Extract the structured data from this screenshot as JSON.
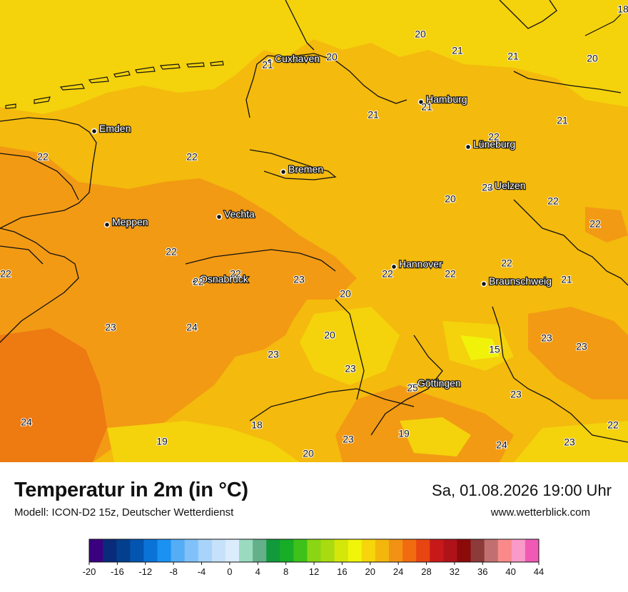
{
  "map": {
    "cities": [
      {
        "name": "Cuxhaven"
      },
      {
        "name": "Hamburg"
      },
      {
        "name": "Emden"
      },
      {
        "name": "Lüneburg"
      },
      {
        "name": "Bremen"
      },
      {
        "name": "Uelzen"
      },
      {
        "name": "Vechta"
      },
      {
        "name": "Meppen"
      },
      {
        "name": "Hannover"
      },
      {
        "name": "Osnabrück"
      },
      {
        "name": "Braunschweig"
      },
      {
        "name": "Göttingen"
      }
    ],
    "values": [
      "18",
      "20",
      "20",
      "21",
      "21",
      "20",
      "21",
      "21",
      "21",
      "21",
      "22",
      "22",
      "22",
      "23",
      "20",
      "22",
      "22",
      "22",
      "22",
      "22",
      "22",
      "22",
      "22",
      "21",
      "22",
      "23",
      "20",
      "23",
      "24",
      "20",
      "23",
      "23",
      "15",
      "23",
      "23",
      "23",
      "25",
      "24",
      "18",
      "19",
      "19",
      "23",
      "24",
      "23",
      "22",
      "20"
    ]
  },
  "footer": {
    "title": "Temperatur in 2m (in °C)",
    "model": "Modell: ICON-D2 15z, Deutscher Wetterdienst",
    "datetime": "Sa, 01.08.2026 19:00 Uhr",
    "website": "www.wetterblick.com"
  },
  "legend": {
    "ticks": [
      "-20",
      "-16",
      "-12",
      "-8",
      "-4",
      "0",
      "4",
      "8",
      "12",
      "16",
      "20",
      "24",
      "28",
      "32",
      "36",
      "40",
      "44"
    ],
    "colors": [
      "#3a007f",
      "#0a2a7a",
      "#033f8c",
      "#0455b0",
      "#0a73d8",
      "#1b91f2",
      "#55adf6",
      "#7fc1f8",
      "#a8d3fa",
      "#c6e2fb",
      "#dbecfc",
      "#9adbc0",
      "#64b08a",
      "#119a3b",
      "#17ad26",
      "#3ec21b",
      "#8ad614",
      "#a9db10",
      "#d4e60a",
      "#f0f50a",
      "#f6d50a",
      "#f3b60c",
      "#f29214",
      "#f16c10",
      "#e84512",
      "#c8191a",
      "#b0121a",
      "#8c0a0a",
      "#8c3a3a",
      "#c07070",
      "#fa8a8a",
      "#fa9ac8",
      "#f05ab4"
    ]
  },
  "palette": {
    "yellow": "#f4d20c",
    "yellow_orange": "#f4ba0d",
    "orange": "#f29a14",
    "dark_orange": "#ee7a12",
    "light_yellow": "#f0f20a"
  }
}
